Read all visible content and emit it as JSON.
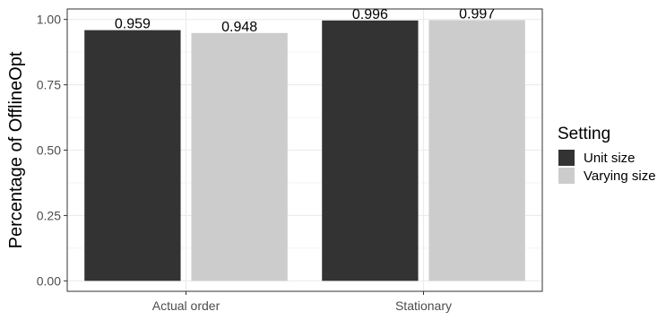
{
  "chart_data": {
    "type": "bar",
    "title": "",
    "xlabel": "",
    "ylabel": "Percentage of OfflineOpt",
    "categories": [
      "Actual order",
      "Stationary"
    ],
    "series": [
      {
        "name": "Unit size",
        "values": [
          0.959,
          0.996
        ],
        "color": "#333333"
      },
      {
        "name": "Varying size",
        "values": [
          0.948,
          0.997
        ],
        "color": "#cccccc"
      }
    ],
    "data_labels": [
      [
        "0.959",
        "0.996"
      ],
      [
        "0.948",
        "0.997"
      ]
    ],
    "ylim": [
      0,
      1.0
    ],
    "yticks": [
      0.0,
      0.25,
      0.5,
      0.75,
      1.0
    ],
    "ytick_labels": [
      "0.00",
      "0.25",
      "0.50",
      "0.75",
      "1.00"
    ],
    "grid": true,
    "legend": {
      "title": "Setting",
      "placement": "right"
    }
  }
}
